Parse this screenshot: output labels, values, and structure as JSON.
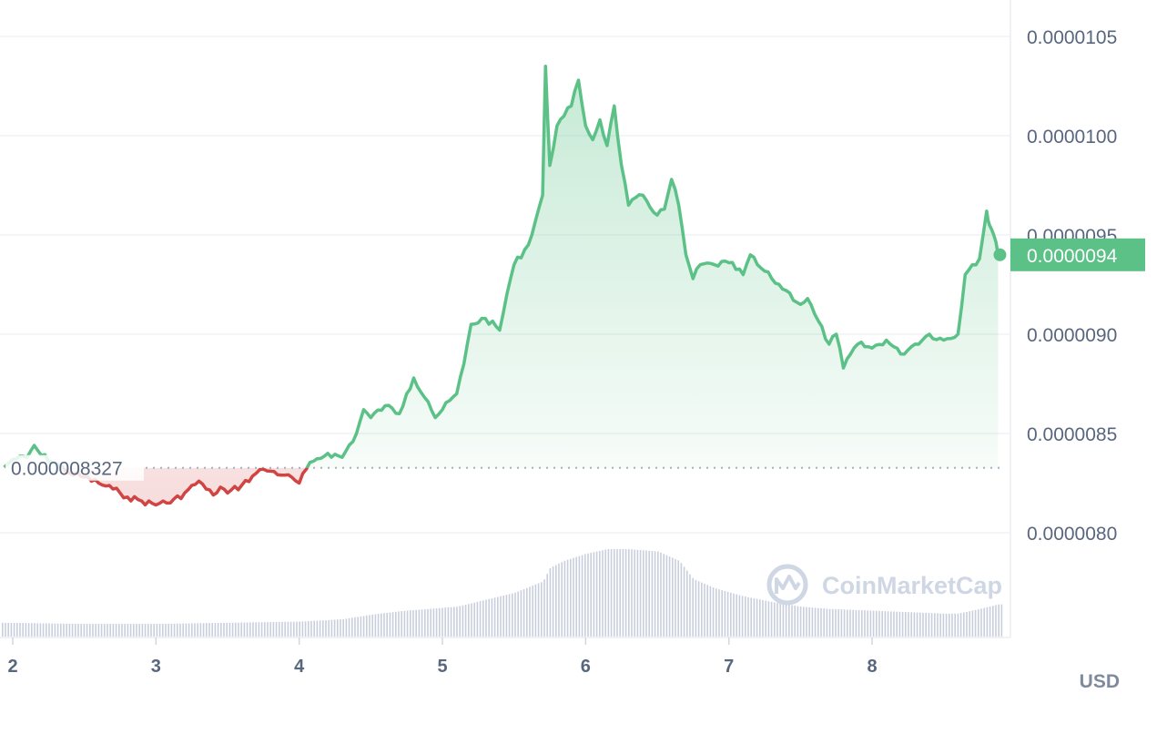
{
  "chart_data": {
    "type": "line",
    "title": "",
    "xlabel": "",
    "ylabel": "",
    "unit_label": "USD",
    "watermark": "CoinMarketCap",
    "baseline": {
      "value": 8.327e-06,
      "label": "0.000008327"
    },
    "last_price": {
      "value": 9.4e-06,
      "label": "0.0000094"
    },
    "ylim": [
      7.7e-06,
      1.06e-05
    ],
    "xlim": [
      1.94,
      8.9
    ],
    "y_ticks": [
      {
        "value": 1.05e-05,
        "label": "0.0000105"
      },
      {
        "value": 1e-05,
        "label": "0.0000100"
      },
      {
        "value": 9.5e-06,
        "label": "0.0000095"
      },
      {
        "value": 9e-06,
        "label": "0.0000090"
      },
      {
        "value": 8.5e-06,
        "label": "0.0000085"
      },
      {
        "value": 8e-06,
        "label": "0.0000080"
      }
    ],
    "x_ticks": [
      {
        "value": 2,
        "label": "2"
      },
      {
        "value": 3,
        "label": "3"
      },
      {
        "value": 4,
        "label": "4"
      },
      {
        "value": 5,
        "label": "5"
      },
      {
        "value": 6,
        "label": "6"
      },
      {
        "value": 7,
        "label": "7"
      },
      {
        "value": 8,
        "label": "8"
      }
    ],
    "grid": true,
    "colors": {
      "up": "#5bc187",
      "down": "#d04543",
      "volume": "#c8cedc",
      "grid": "#eff2f5",
      "last_price_bg": "#5bc187"
    },
    "price_series": {
      "name": "",
      "x": [
        1.94,
        2.0,
        2.1,
        2.15,
        2.2,
        2.3,
        2.4,
        2.5,
        2.6,
        2.7,
        2.75,
        2.8,
        2.9,
        3.0,
        3.05,
        3.1,
        3.2,
        3.3,
        3.35,
        3.4,
        3.45,
        3.5,
        3.6,
        3.7,
        3.75,
        3.8,
        3.9,
        4.0,
        4.05,
        4.1,
        4.2,
        4.3,
        4.4,
        4.45,
        4.5,
        4.6,
        4.7,
        4.75,
        4.8,
        4.9,
        4.95,
        5.0,
        5.1,
        5.15,
        5.2,
        5.3,
        5.4,
        5.45,
        5.5,
        5.6,
        5.7,
        5.72,
        5.75,
        5.8,
        5.85,
        5.9,
        5.95,
        6.0,
        6.05,
        6.1,
        6.15,
        6.2,
        6.25,
        6.3,
        6.4,
        6.5,
        6.55,
        6.6,
        6.65,
        6.7,
        6.75,
        6.8,
        6.9,
        7.0,
        7.1,
        7.15,
        7.2,
        7.3,
        7.4,
        7.5,
        7.55,
        7.6,
        7.7,
        7.75,
        7.8,
        7.85,
        7.9,
        8.0,
        8.1,
        8.2,
        8.3,
        8.4,
        8.5,
        8.6,
        8.65,
        8.7,
        8.75,
        8.8,
        8.82,
        8.85,
        8.88
      ],
      "values": [
        8.33e-06,
        8.37e-06,
        8.38e-06,
        8.44e-06,
        8.39e-06,
        8.35e-06,
        8.3e-06,
        8.28e-06,
        8.25e-06,
        8.22e-06,
        8.2e-06,
        8.18e-06,
        8.16e-06,
        8.14e-06,
        8.16e-06,
        8.15e-06,
        8.2e-06,
        8.26e-06,
        8.22e-06,
        8.19e-06,
        8.23e-06,
        8.2e-06,
        8.24e-06,
        8.3e-06,
        8.32e-06,
        8.31e-06,
        8.29e-06,
        8.25e-06,
        8.32e-06,
        8.36e-06,
        8.4e-06,
        8.38e-06,
        8.5e-06,
        8.62e-06,
        8.58e-06,
        8.64e-06,
        8.6e-06,
        8.7e-06,
        8.78e-06,
        8.66e-06,
        8.58e-06,
        8.62e-06,
        8.7e-06,
        8.85e-06,
        9.05e-06,
        9.08e-06,
        9.02e-06,
        9.2e-06,
        9.35e-06,
        9.45e-06,
        9.7e-06,
        1.035e-05,
        9.85e-06,
        1.005e-05,
        1.01e-05,
        1.015e-05,
        1.028e-05,
        1.005e-05,
        9.98e-06,
        1.008e-05,
        9.95e-06,
        1.015e-05,
        9.85e-06,
        9.65e-06,
        9.7e-06,
        9.6e-06,
        9.63e-06,
        9.78e-06,
        9.65e-06,
        9.4e-06,
        9.28e-06,
        9.35e-06,
        9.35e-06,
        9.36e-06,
        9.3e-06,
        9.4e-06,
        9.35e-06,
        9.28e-06,
        9.22e-06,
        9.15e-06,
        9.18e-06,
        9.1e-06,
        8.95e-06,
        9e-06,
        8.83e-06,
        8.9e-06,
        8.95e-06,
        8.93e-06,
        8.97e-06,
        8.9e-06,
        8.95e-06,
        9e-06,
        8.97e-06,
        9e-06,
        9.3e-06,
        9.35e-06,
        9.38e-06,
        9.62e-06,
        9.55e-06,
        9.5e-06,
        9.4e-06
      ]
    },
    "volume_series": {
      "name": "",
      "x": [
        1.94,
        2.5,
        3.0,
        3.5,
        4.0,
        4.3,
        4.5,
        4.7,
        4.9,
        5.1,
        5.3,
        5.5,
        5.7,
        5.75,
        5.85,
        6.0,
        6.15,
        6.3,
        6.5,
        6.65,
        6.75,
        6.9,
        7.1,
        7.3,
        7.5,
        7.7,
        7.9,
        8.1,
        8.3,
        8.5,
        8.6,
        8.75,
        8.88
      ],
      "values": [
        12,
        11,
        11,
        12,
        13,
        15,
        19,
        22,
        24,
        26,
        32,
        38,
        48,
        60,
        66,
        72,
        76,
        76,
        74,
        66,
        50,
        42,
        35,
        30,
        26,
        24,
        23,
        22,
        21,
        20,
        20,
        24,
        28
      ]
    }
  }
}
